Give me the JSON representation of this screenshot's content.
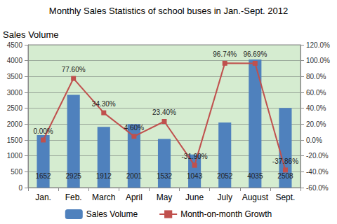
{
  "chart_data": {
    "type": "bar",
    "title": "Monthly Sales Statistics of school buses in Jan.-Sept. 2012",
    "y_label": "Sales Volume",
    "categories": [
      "Jan.",
      "Feb.",
      "March",
      "April",
      "May",
      "June",
      "July",
      "August",
      "Sept."
    ],
    "series": [
      {
        "name": "Sales Volume",
        "type": "bar",
        "color": "#4f81bd",
        "values": [
          1652,
          2925,
          1912,
          2001,
          1532,
          1043,
          2052,
          4035,
          2508
        ]
      },
      {
        "name": "Month-on-month Growth",
        "type": "line",
        "axis": "y2",
        "color": "#c0504d",
        "marker": "square",
        "line_style": "solid",
        "values": [
          0.0,
          77.6,
          34.3,
          4.6,
          23.4,
          -31.9,
          96.74,
          96.69,
          -37.86
        ],
        "value_labels": [
          "0.00%",
          "77.60%",
          "34.30%",
          "4.60%",
          "23.40%",
          "-31.90%",
          "96.74%",
          "96.69%",
          "-37.86%"
        ]
      }
    ],
    "ylim": [
      0,
      4500
    ],
    "yticks": [
      0,
      500,
      1000,
      1500,
      2000,
      2500,
      3000,
      3500,
      4000,
      4500
    ],
    "y2lim": [
      -60,
      120
    ],
    "y2ticks": [
      {
        "value": -60,
        "label": "-60.0%"
      },
      {
        "value": -40,
        "label": "-40.0%"
      },
      {
        "value": -20,
        "label": "-20.0%"
      },
      {
        "value": 0,
        "label": "0.0%"
      },
      {
        "value": 20,
        "label": "20.0%"
      },
      {
        "value": 40,
        "label": "40.0%"
      },
      {
        "value": 60,
        "label": "60.0%"
      },
      {
        "value": 80,
        "label": "80.0%"
      },
      {
        "value": 100,
        "label": "100.0%"
      },
      {
        "value": 120,
        "label": "120.0%"
      }
    ],
    "grid": true,
    "legend": "bottom",
    "data_labels": true
  }
}
